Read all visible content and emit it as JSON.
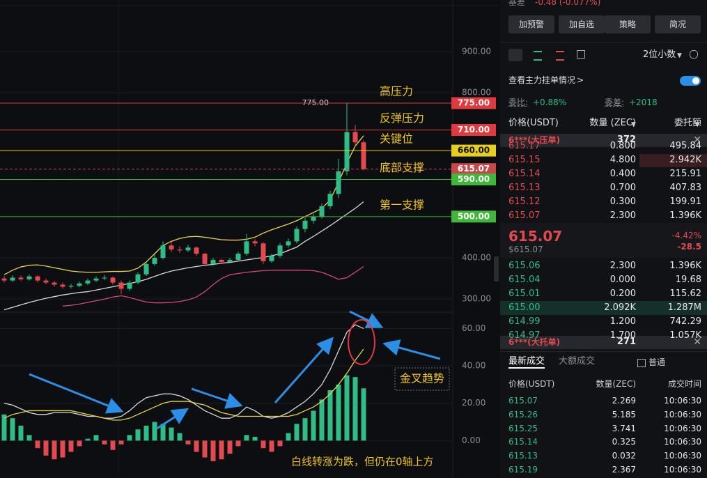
{
  "chart_data": [
    {
      "type": "candlestick",
      "open": [
        350,
        345,
        352,
        348,
        355,
        345,
        340,
        335,
        330,
        332,
        338,
        345,
        350,
        352,
        340,
        325,
        340,
        360,
        385,
        400,
        430,
        420,
        418,
        425,
        410,
        385,
        395,
        390,
        395,
        410,
        440,
        435,
        392,
        405,
        430,
        440,
        470,
        490,
        500,
        525,
        555,
        610,
        705,
        680
      ],
      "high": [
        356,
        358,
        357,
        360,
        358,
        350,
        344,
        340,
        337,
        343,
        350,
        355,
        358,
        355,
        345,
        345,
        365,
        390,
        408,
        440,
        438,
        428,
        432,
        428,
        412,
        400,
        398,
        400,
        415,
        458,
        445,
        438,
        410,
        436,
        447,
        476,
        497,
        508,
        532,
        562,
        640,
        775,
        722,
        685
      ],
      "low": [
        340,
        342,
        344,
        345,
        340,
        336,
        330,
        325,
        326,
        329,
        334,
        341,
        346,
        335,
        312,
        320,
        336,
        356,
        380,
        396,
        414,
        412,
        414,
        405,
        380,
        382,
        385,
        387,
        392,
        405,
        428,
        385,
        388,
        400,
        425,
        435,
        462,
        483,
        495,
        518,
        545,
        600,
        670,
        612
      ],
      "close": [
        345,
        352,
        348,
        355,
        345,
        340,
        335,
        330,
        332,
        338,
        345,
        350,
        352,
        340,
        325,
        340,
        360,
        385,
        400,
        430,
        420,
        418,
        425,
        410,
        385,
        395,
        390,
        395,
        410,
        440,
        435,
        392,
        405,
        430,
        440,
        470,
        490,
        500,
        525,
        555,
        610,
        705,
        680,
        615.07
      ],
      "up_color": "#2ebd85",
      "down_color": "#e34a4f",
      "series": [
        {
          "color": "#e8d44d",
          "values": [
            359,
            370,
            378,
            382,
            383,
            380,
            376,
            372,
            368,
            366,
            365,
            365,
            366,
            367,
            367,
            368,
            375,
            390,
            410,
            430,
            440,
            447,
            451,
            452,
            450,
            447,
            444,
            443,
            443,
            445,
            450,
            460,
            468,
            475,
            482,
            490,
            500,
            510,
            520,
            540,
            583,
            630,
            671,
            696
          ]
        },
        {
          "color": "#d9d9d9",
          "values": [
            274,
            280,
            286,
            292,
            297,
            302,
            306,
            310,
            313,
            316,
            318,
            322,
            326,
            330,
            334,
            338,
            342,
            348,
            355,
            362,
            368,
            372,
            376,
            379,
            382,
            384,
            387,
            389,
            392,
            395,
            398,
            401,
            405,
            410,
            418,
            426,
            440,
            452,
            465,
            478,
            492,
            506,
            520,
            536
          ]
        },
        {
          "color": "#d8467a",
          "values": [
            null,
            null,
            null,
            null,
            null,
            null,
            null,
            283,
            285,
            288,
            292,
            296,
            300,
            305,
            308,
            304,
            298,
            293,
            291,
            291,
            292,
            294,
            298,
            305,
            318,
            335,
            350,
            359,
            362,
            365,
            367,
            369,
            370,
            370,
            370,
            370,
            370,
            369,
            365,
            357,
            348,
            352,
            365,
            379
          ]
        }
      ],
      "ylim": [
        270,
        1025
      ],
      "yticks": [
        {
          "value": 900,
          "label": "900.00"
        },
        {
          "value": 800,
          "label": "800.00"
        },
        {
          "value": 400,
          "label": "400.00"
        },
        {
          "value": 300,
          "label": "300.00"
        }
      ],
      "max_label": "775.00",
      "levels": [
        {
          "value": 775,
          "label": "775.00",
          "name": "高压力",
          "color": "#e0393e"
        },
        {
          "value": 710,
          "label": "710.00",
          "name": "反弹压力",
          "color": "#e0393e"
        },
        {
          "value": 660,
          "label": "660.00",
          "name": "关键位",
          "color": "#e8cf1e"
        },
        {
          "value": 615.07,
          "label": "615.07",
          "color": "#c9474b",
          "style": "dashed"
        },
        {
          "value": 590,
          "label": "590.00",
          "name": "底部支撑",
          "color": "#3fb83a"
        },
        {
          "value": 500,
          "label": "500.00",
          "name": "第一支撑",
          "color": "#3fb83a"
        }
      ]
    },
    {
      "type": "macd",
      "values": [
        14,
        12,
        8,
        3,
        -4,
        -8,
        -10,
        -9,
        -6,
        -3,
        1,
        3,
        -2,
        -5,
        -2,
        3,
        6,
        8,
        10,
        9,
        7,
        4,
        -2,
        -6,
        -9,
        -11,
        -10,
        -7,
        -3,
        3,
        2,
        -4,
        -6,
        -3,
        4,
        9,
        12,
        16,
        22,
        27,
        30,
        35,
        34,
        28
      ],
      "up_color": "#2ebd85",
      "down_color": "#e34a4f",
      "series": [
        {
          "color": "#d9d9d9",
          "values": [
            20,
            19,
            17,
            15,
            14,
            14,
            15,
            15,
            15,
            14,
            13,
            13,
            12,
            12,
            13,
            16,
            20,
            23,
            24,
            25,
            25,
            24,
            22,
            19,
            16,
            14,
            12,
            12,
            14,
            18,
            16,
            13,
            12,
            13,
            15,
            18,
            21,
            25,
            30,
            38,
            48,
            58,
            62,
            60
          ]
        },
        {
          "color": "#e8d44d",
          "values": [
            12,
            14,
            15,
            16,
            16,
            16,
            16,
            16,
            16,
            15,
            14,
            13,
            12,
            11,
            11,
            12,
            14,
            16,
            18,
            20,
            21,
            21,
            21,
            20,
            19,
            17,
            15,
            14,
            13,
            13,
            13,
            13,
            13,
            13,
            13,
            14,
            16,
            18,
            21,
            25,
            30,
            36,
            43,
            49
          ]
        }
      ],
      "ylim": [
        -20,
        68
      ],
      "yticks": [
        {
          "value": 60,
          "label": "60.00"
        },
        {
          "value": 40,
          "label": "40.00"
        },
        {
          "value": 20,
          "label": "20.00"
        },
        {
          "value": 0,
          "label": "0.00"
        }
      ],
      "annotations": [
        "金叉趋势",
        "白线转涨为跌，但仍在0轴上方"
      ]
    }
  ],
  "panel": {
    "basis_label": "基差",
    "basis_value": "-0.48 (-0.077%)",
    "buttons": [
      "加预警",
      "加自选",
      "策略",
      "简况"
    ],
    "decimals": "2位小数",
    "main_orders": "查看主力挂单情况",
    "ratio_label": "委比:",
    "ratio": "+0.88%",
    "diff_label": "委差:",
    "diff": "+2018",
    "book_headers": [
      "价格(USDT)",
      "数量 (ZEC)",
      "委托额"
    ],
    "big_ask": {
      "label": "6***(大压单)",
      "qty": "372"
    },
    "asks": [
      [
        "615.17",
        "0.800",
        "495.84"
      ],
      [
        "615.15",
        "4.800",
        "2.942K"
      ],
      [
        "615.14",
        "0.400",
        "215.91"
      ],
      [
        "615.13",
        "0.700",
        "407.83"
      ],
      [
        "615.12",
        "0.300",
        "199.91"
      ],
      [
        "615.07",
        "2.300",
        "1.396K"
      ]
    ],
    "last": "615.07",
    "last_usd": "$615.07",
    "change_pct": "-4.42%",
    "change": "-28.5",
    "bids": [
      [
        "615.06",
        "2.300",
        "1.396K"
      ],
      [
        "615.04",
        "0.000",
        "19.68"
      ],
      [
        "615.01",
        "0.200",
        "115.62"
      ],
      [
        "615.00",
        "2.092K",
        "1.287M"
      ],
      [
        "614.99",
        "1.200",
        "742.29"
      ],
      [
        "614.97",
        "1.700",
        "1.057K"
      ]
    ],
    "big_bid": {
      "label": "6***(大托单)",
      "qty": "271"
    },
    "tabs": [
      "最新成交",
      "大额成交"
    ],
    "normal": "普通",
    "trade_headers": [
      "价格(USDT)",
      "数量(ZEC)",
      "成交时间"
    ],
    "trades": [
      [
        "615.07",
        "2.269",
        "10:06:30"
      ],
      [
        "615.26",
        "5.185",
        "10:06:30"
      ],
      [
        "615.25",
        "3.741",
        "10:06:30"
      ],
      [
        "615.14",
        "0.325",
        "10:06:30"
      ],
      [
        "615.13",
        "0.032",
        "10:06:30"
      ],
      [
        "615.19",
        "2.367",
        "10:06:30"
      ]
    ]
  }
}
